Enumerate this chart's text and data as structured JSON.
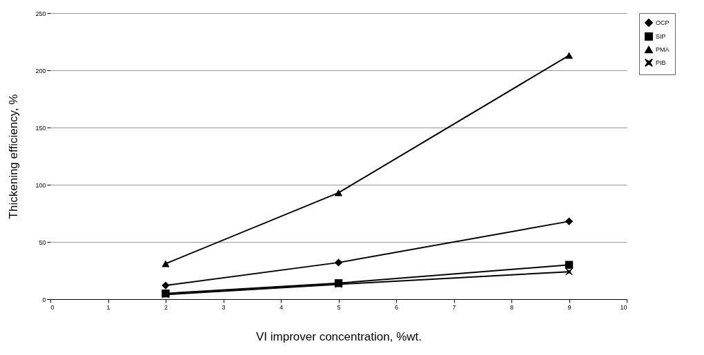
{
  "chart_data": {
    "type": "line",
    "xlabel": "VI improver concentration, %wt.",
    "ylabel": "Thickening efficiency, %",
    "x": [
      2,
      5,
      9
    ],
    "series": [
      {
        "name": "OCP",
        "color": "#000000",
        "marker": "diamond",
        "values": [
          12,
          32,
          68
        ]
      },
      {
        "name": "SIP",
        "color": "#000000",
        "marker": "square",
        "values": [
          5,
          14,
          30
        ]
      },
      {
        "name": "PMA",
        "color": "#000000",
        "marker": "triangle",
        "values": [
          31,
          93,
          213
        ]
      },
      {
        "name": "PIB",
        "color": "#000000",
        "marker": "cross",
        "values": [
          4,
          13,
          24
        ]
      }
    ],
    "xlim": [
      0,
      10
    ],
    "xticks": [
      0,
      1,
      2,
      3,
      4,
      5,
      6,
      7,
      8,
      9,
      10
    ],
    "ylim": [
      0,
      250
    ],
    "yticks": [
      0,
      50,
      100,
      150,
      200,
      250
    ],
    "grid": "y",
    "legend": "right",
    "line_style": "solid"
  }
}
